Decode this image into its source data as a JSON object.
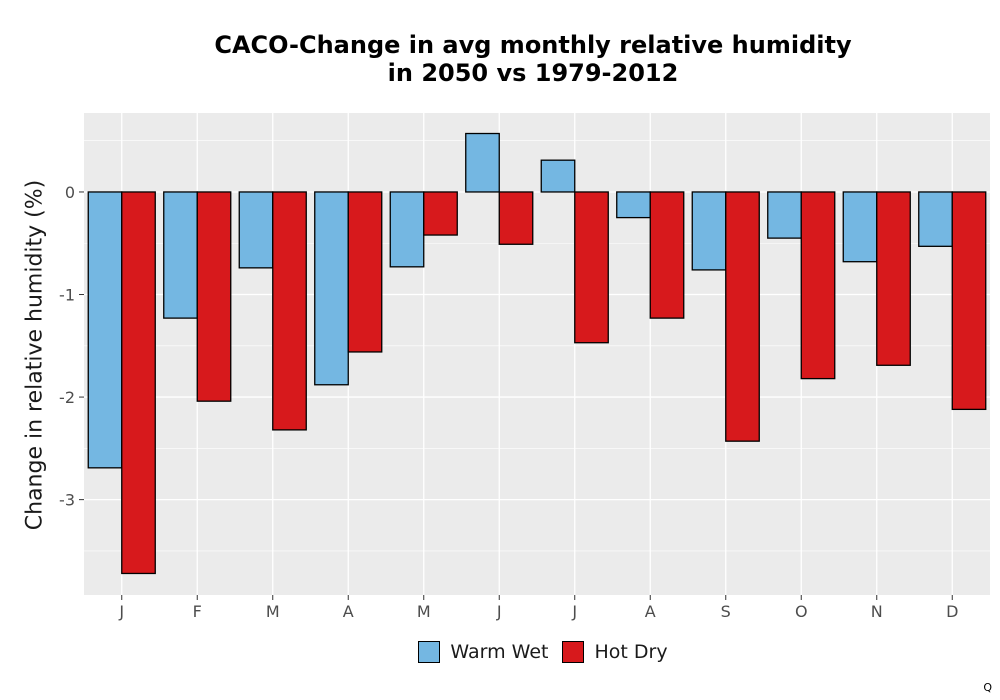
{
  "chart_data": {
    "type": "bar",
    "title_lines": [
      "CACO-Change in avg monthly relative humidity",
      "in 2050 vs 1979-2012"
    ],
    "xlabel": "",
    "ylabel": "Change in relative humidity (%)",
    "categories": [
      "J",
      "F",
      "M",
      "A",
      "M",
      "J",
      "J",
      "A",
      "S",
      "O",
      "N",
      "D"
    ],
    "series": [
      {
        "name": "Warm Wet",
        "color": "#74b7e2",
        "values": [
          -2.69,
          -1.23,
          -0.74,
          -1.88,
          -0.73,
          0.57,
          0.31,
          -0.25,
          -0.76,
          -0.45,
          -0.68,
          -0.53
        ]
      },
      {
        "name": "Hot Dry",
        "color": "#d7191c",
        "values": [
          -3.72,
          -2.04,
          -2.32,
          -1.56,
          -0.42,
          -0.51,
          -1.47,
          -1.23,
          -2.43,
          -1.82,
          -1.69,
          -2.12
        ]
      }
    ],
    "ylim": [
      -3.93,
      0.77
    ],
    "yticks": [
      0,
      -1,
      -2,
      -3
    ],
    "ytick_labels": [
      "0",
      "-1",
      "-2",
      "-3"
    ],
    "grid": true,
    "legend_position": "bottom",
    "caption": "Q",
    "colors": {
      "panel": "#ebebeb",
      "gridline": "#ffffff",
      "bar_outline": "#000000"
    }
  }
}
